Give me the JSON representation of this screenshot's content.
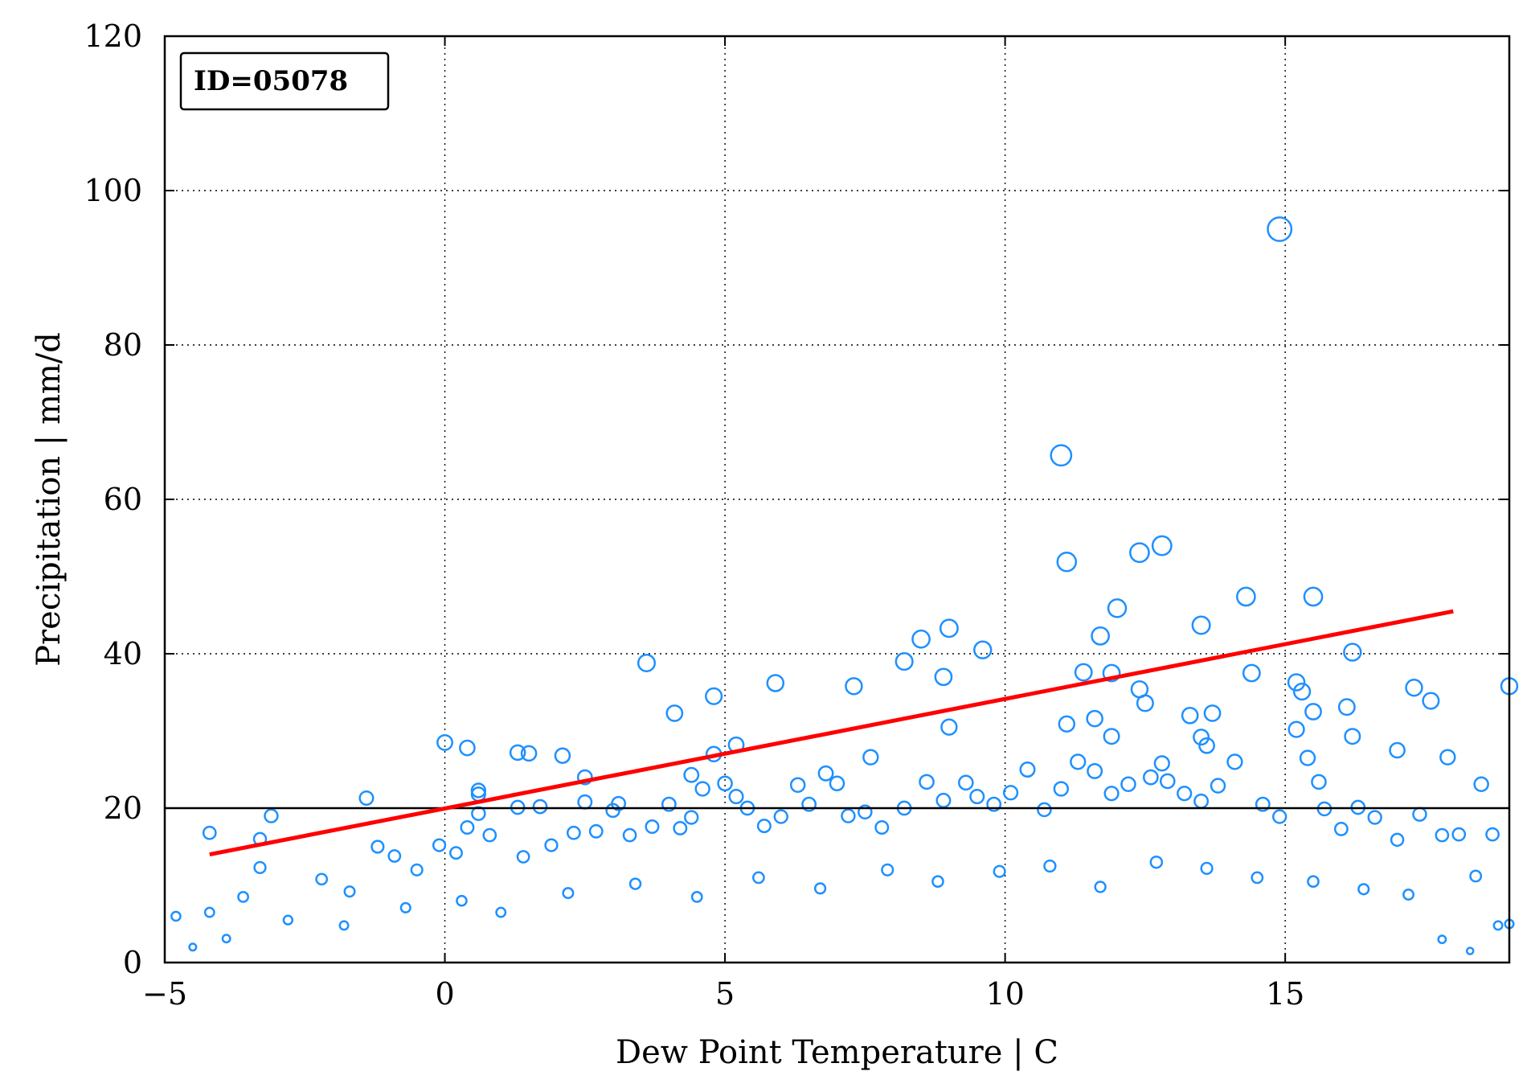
{
  "chart_data": {
    "type": "scatter",
    "title": "",
    "xlabel": "Dew Point Temperature | C",
    "ylabel": "Precipitation | mm/d",
    "xlim": [
      -5,
      19
    ],
    "ylim": [
      0,
      120
    ],
    "x_ticks": [
      -5,
      0,
      5,
      10,
      15
    ],
    "x_tick_labels": [
      "−5",
      "0",
      "5",
      "10",
      "15"
    ],
    "y_ticks": [
      0,
      20,
      40,
      60,
      80,
      100,
      120
    ],
    "y_tick_labels": [
      "0",
      "20",
      "40",
      "60",
      "80",
      "100",
      "120"
    ],
    "grid": true,
    "annotation": "ID=05078",
    "threshold_line": {
      "y": 20
    },
    "colors": {
      "points": "#1E90FF",
      "fit": "#FF0000",
      "threshold": "#000000"
    },
    "fit_line": {
      "x": [
        -4.2,
        18.0
      ],
      "y": [
        14.0,
        45.5
      ]
    },
    "series": [
      {
        "marker": "open-circle",
        "size_scales_with_value": true,
        "points": [
          [
            -4.2,
            16.8
          ],
          [
            -3.1,
            19.0
          ],
          [
            -1.4,
            21.3
          ],
          [
            0.0,
            28.5
          ],
          [
            0.4,
            27.8
          ],
          [
            0.6,
            22.3
          ],
          [
            0.6,
            21.8
          ],
          [
            1.3,
            27.2
          ],
          [
            1.5,
            27.1
          ],
          [
            2.1,
            26.8
          ],
          [
            2.5,
            24.0
          ],
          [
            2.5,
            20.8
          ],
          [
            3.1,
            20.6
          ],
          [
            3.6,
            38.8
          ],
          [
            4.1,
            32.3
          ],
          [
            4.4,
            24.3
          ],
          [
            4.8,
            34.5
          ],
          [
            4.8,
            27.0
          ],
          [
            5.2,
            28.2
          ],
          [
            5.9,
            36.2
          ],
          [
            7.3,
            35.8
          ],
          [
            7.6,
            26.6
          ],
          [
            8.2,
            39.0
          ],
          [
            8.5,
            41.9
          ],
          [
            8.9,
            37.0
          ],
          [
            9.0,
            43.3
          ],
          [
            9.0,
            30.5
          ],
          [
            9.6,
            40.5
          ],
          [
            11.0,
            65.7
          ],
          [
            11.1,
            51.9
          ],
          [
            11.1,
            30.9
          ],
          [
            11.4,
            37.6
          ],
          [
            11.6,
            31.6
          ],
          [
            11.7,
            42.3
          ],
          [
            11.9,
            37.5
          ],
          [
            11.9,
            29.3
          ],
          [
            12.0,
            45.9
          ],
          [
            12.4,
            53.1
          ],
          [
            12.4,
            35.4
          ],
          [
            12.5,
            33.6
          ],
          [
            12.8,
            54.0
          ],
          [
            12.8,
            25.8
          ],
          [
            13.3,
            32.0
          ],
          [
            13.5,
            43.7
          ],
          [
            13.5,
            29.2
          ],
          [
            13.6,
            28.1
          ],
          [
            13.7,
            32.3
          ],
          [
            14.3,
            47.4
          ],
          [
            14.4,
            37.5
          ],
          [
            14.9,
            95.0
          ],
          [
            15.2,
            36.3
          ],
          [
            15.3,
            35.1
          ],
          [
            15.5,
            47.4
          ],
          [
            15.5,
            32.5
          ],
          [
            15.6,
            23.4
          ],
          [
            16.1,
            33.1
          ],
          [
            16.2,
            40.2
          ],
          [
            16.2,
            29.3
          ],
          [
            17.0,
            27.5
          ],
          [
            17.3,
            35.6
          ],
          [
            17.6,
            33.9
          ],
          [
            17.9,
            26.6
          ],
          [
            18.5,
            23.1
          ],
          [
            19.0,
            35.8
          ],
          [
            18.7,
            16.6
          ],
          [
            -4.8,
            6.0
          ],
          [
            -4.2,
            6.5
          ],
          [
            -3.6,
            8.5
          ],
          [
            -3.3,
            16.0
          ],
          [
            -3.3,
            12.3
          ],
          [
            -2.2,
            10.8
          ],
          [
            -1.7,
            9.2
          ],
          [
            -1.2,
            15.0
          ],
          [
            -0.9,
            13.8
          ],
          [
            -0.5,
            12.0
          ],
          [
            -0.1,
            15.2
          ],
          [
            0.2,
            14.2
          ],
          [
            0.4,
            17.5
          ],
          [
            0.6,
            19.3
          ],
          [
            0.8,
            16.5
          ],
          [
            1.3,
            20.1
          ],
          [
            1.4,
            13.7
          ],
          [
            1.7,
            20.2
          ],
          [
            1.9,
            15.2
          ],
          [
            2.3,
            16.8
          ],
          [
            2.7,
            17.0
          ],
          [
            3.0,
            19.7
          ],
          [
            3.3,
            16.5
          ],
          [
            3.7,
            17.6
          ],
          [
            4.0,
            20.5
          ],
          [
            4.2,
            17.4
          ],
          [
            4.4,
            18.8
          ],
          [
            4.6,
            22.5
          ],
          [
            5.0,
            23.2
          ],
          [
            5.2,
            21.5
          ],
          [
            5.4,
            20.0
          ],
          [
            5.7,
            17.7
          ],
          [
            6.0,
            18.9
          ],
          [
            6.3,
            23.0
          ],
          [
            6.5,
            20.5
          ],
          [
            6.8,
            24.5
          ],
          [
            7.0,
            23.2
          ],
          [
            7.2,
            19.0
          ],
          [
            7.5,
            19.5
          ],
          [
            7.8,
            17.5
          ],
          [
            8.2,
            20.0
          ],
          [
            8.6,
            23.4
          ],
          [
            8.9,
            21.0
          ],
          [
            9.3,
            23.3
          ],
          [
            9.5,
            21.5
          ],
          [
            9.8,
            20.5
          ],
          [
            10.1,
            22.0
          ],
          [
            10.4,
            25.0
          ],
          [
            10.7,
            19.8
          ],
          [
            11.0,
            22.5
          ],
          [
            11.3,
            26.0
          ],
          [
            11.6,
            24.8
          ],
          [
            11.9,
            21.9
          ],
          [
            12.2,
            23.1
          ],
          [
            12.6,
            24.0
          ],
          [
            12.9,
            23.5
          ],
          [
            13.2,
            21.9
          ],
          [
            13.5,
            20.9
          ],
          [
            13.8,
            22.9
          ],
          [
            14.1,
            26.0
          ],
          [
            14.6,
            20.5
          ],
          [
            14.9,
            18.9
          ],
          [
            15.2,
            30.2
          ],
          [
            15.4,
            26.5
          ],
          [
            15.7,
            19.9
          ],
          [
            16.0,
            17.3
          ],
          [
            16.3,
            20.1
          ],
          [
            16.6,
            18.8
          ],
          [
            17.0,
            15.9
          ],
          [
            17.4,
            19.2
          ],
          [
            17.8,
            16.5
          ],
          [
            18.1,
            16.6
          ],
          [
            18.4,
            11.2
          ],
          [
            18.8,
            4.8
          ],
          [
            19.0,
            5.0
          ],
          [
            -4.5,
            2.0
          ],
          [
            -3.9,
            3.1
          ],
          [
            -2.8,
            5.5
          ],
          [
            -1.8,
            4.8
          ],
          [
            -0.7,
            7.1
          ],
          [
            0.3,
            8.0
          ],
          [
            1.0,
            6.5
          ],
          [
            2.2,
            9.0
          ],
          [
            3.4,
            10.2
          ],
          [
            4.5,
            8.5
          ],
          [
            5.6,
            11.0
          ],
          [
            6.7,
            9.6
          ],
          [
            7.9,
            12.0
          ],
          [
            8.8,
            10.5
          ],
          [
            9.9,
            11.8
          ],
          [
            10.8,
            12.5
          ],
          [
            11.7,
            9.8
          ],
          [
            12.7,
            13.0
          ],
          [
            13.6,
            12.2
          ],
          [
            14.5,
            11.0
          ],
          [
            15.5,
            10.5
          ],
          [
            16.4,
            9.5
          ],
          [
            17.2,
            8.8
          ],
          [
            17.8,
            3.0
          ],
          [
            18.3,
            1.5
          ]
        ]
      }
    ]
  }
}
